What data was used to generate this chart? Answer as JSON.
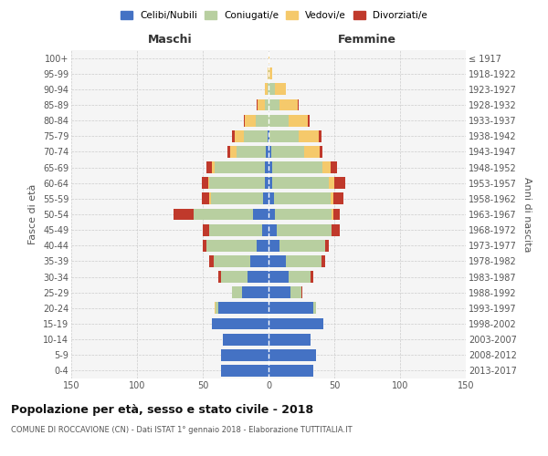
{
  "age_groups": [
    "100+",
    "95-99",
    "90-94",
    "85-89",
    "80-84",
    "75-79",
    "70-74",
    "65-69",
    "60-64",
    "55-59",
    "50-54",
    "45-49",
    "40-44",
    "35-39",
    "30-34",
    "25-29",
    "20-24",
    "15-19",
    "10-14",
    "5-9",
    "0-4"
  ],
  "birth_years": [
    "≤ 1917",
    "1918-1922",
    "1923-1927",
    "1928-1932",
    "1933-1937",
    "1938-1942",
    "1943-1947",
    "1948-1952",
    "1953-1957",
    "1958-1962",
    "1963-1967",
    "1968-1972",
    "1973-1977",
    "1978-1982",
    "1983-1987",
    "1988-1992",
    "1993-1997",
    "1998-2002",
    "2003-2007",
    "2008-2012",
    "2013-2017"
  ],
  "colors": {
    "celibi": "#4472c4",
    "coniugati": "#b8cfa0",
    "vedovi": "#f5c96b",
    "divorziati": "#c0392b"
  },
  "male": {
    "celibi": [
      0,
      0,
      0,
      0,
      0,
      1,
      2,
      3,
      3,
      4,
      12,
      5,
      9,
      14,
      16,
      20,
      38,
      43,
      35,
      36,
      36
    ],
    "coniugati": [
      0,
      0,
      1,
      3,
      10,
      18,
      22,
      38,
      42,
      40,
      45,
      40,
      38,
      28,
      20,
      8,
      2,
      0,
      0,
      0,
      0
    ],
    "vedovi": [
      0,
      1,
      2,
      5,
      8,
      7,
      5,
      2,
      1,
      1,
      0,
      0,
      0,
      0,
      0,
      0,
      1,
      0,
      0,
      0,
      0
    ],
    "divorziati": [
      0,
      0,
      0,
      1,
      1,
      2,
      2,
      4,
      5,
      6,
      15,
      5,
      3,
      3,
      2,
      0,
      0,
      0,
      0,
      0,
      0
    ]
  },
  "female": {
    "celibi": [
      0,
      0,
      0,
      0,
      0,
      1,
      2,
      3,
      3,
      4,
      5,
      6,
      8,
      13,
      15,
      17,
      34,
      42,
      32,
      36,
      34
    ],
    "coniugati": [
      0,
      1,
      5,
      8,
      15,
      22,
      25,
      38,
      43,
      43,
      43,
      42,
      35,
      27,
      17,
      8,
      2,
      0,
      0,
      0,
      0
    ],
    "vedovi": [
      1,
      2,
      8,
      14,
      15,
      15,
      12,
      6,
      4,
      2,
      1,
      0,
      0,
      0,
      0,
      0,
      0,
      0,
      0,
      0,
      0
    ],
    "divorziati": [
      0,
      0,
      0,
      1,
      1,
      2,
      2,
      5,
      8,
      8,
      5,
      6,
      3,
      3,
      2,
      1,
      0,
      0,
      0,
      0,
      0
    ]
  },
  "xlim": 150,
  "title": "Popolazione per età, sesso e stato civile - 2018",
  "subtitle": "COMUNE DI ROCCAVIONE (CN) - Dati ISTAT 1° gennaio 2018 - Elaborazione TUTTITALIA.IT",
  "ylabel_left": "Fasce di età",
  "ylabel_right": "Anni di nascita",
  "xlabel_left": "Maschi",
  "xlabel_right": "Femmine",
  "legend_labels": [
    "Celibi/Nubili",
    "Coniugati/e",
    "Vedovi/e",
    "Divorziati/e"
  ],
  "bg_color": "#f5f5f5"
}
